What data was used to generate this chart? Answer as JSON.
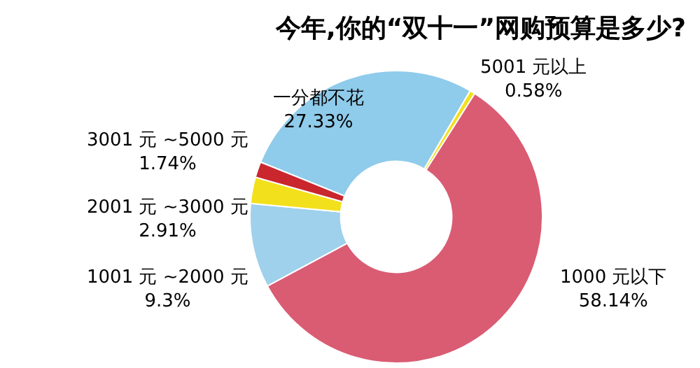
{
  "chart_data": {
    "type": "donut",
    "title": "今年,你的“双十一”网购预算是多少?",
    "categories": [
      "一分都不花",
      "5001 元以上",
      "1000 元以下",
      "1001 元 ~2000 元",
      "2001 元 ~3000 元",
      "3001 元 ~5000 元"
    ],
    "values": [
      27.33,
      0.58,
      58.14,
      9.3,
      2.91,
      1.74
    ],
    "value_labels": [
      "27.33%",
      "0.58%",
      "58.14%",
      "9.3%",
      "2.91%",
      "1.74%"
    ],
    "colors": [
      "#8fcbea",
      "#f3e01c",
      "#d95c73",
      "#9fd0ec",
      "#f3e01c",
      "#c9262e"
    ],
    "legend": false
  }
}
